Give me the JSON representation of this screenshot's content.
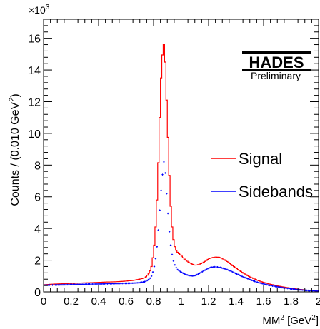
{
  "chart_data": {
    "type": "histogram",
    "xlabel": "MM",
    "xlabel_sup": "2",
    "xlabel_unit_open": " [GeV",
    "xlabel_unit_sup": "2",
    "xlabel_unit_close": "]",
    "ylabel": "Counts / (0.010 GeV",
    "ylabel_sup": "2",
    "ylabel_close": ")",
    "y_multiplier": "×10",
    "y_multiplier_sup": "3",
    "xlim": [
      0,
      2
    ],
    "ylim": [
      0,
      17.2
    ],
    "xticks": [
      0,
      0.2,
      0.4,
      0.6,
      0.8,
      1,
      1.2,
      1.4,
      1.6,
      1.8,
      2
    ],
    "xtick_labels": [
      "0",
      "0.2",
      "0.4",
      "0.6",
      "0.8",
      "1",
      "1.2",
      "1.4",
      "1.6",
      "1.8",
      "2"
    ],
    "yticks": [
      0,
      2,
      4,
      6,
      8,
      10,
      12,
      14,
      16
    ],
    "ytick_labels": [
      "0",
      "2",
      "4",
      "6",
      "8",
      "10",
      "12",
      "14",
      "16"
    ],
    "grid": false,
    "legend_position": "right",
    "watermark": {
      "logo": "HADES",
      "text": "Preliminary"
    },
    "colors": {
      "signal": "#ff0000",
      "sidebands": "#0000ff",
      "axis": "#000000"
    },
    "series": [
      {
        "name": "Signal",
        "style": "step",
        "bin_width": 0.01,
        "x": [
          0.0,
          0.05,
          0.1,
          0.15,
          0.2,
          0.25,
          0.3,
          0.35,
          0.4,
          0.45,
          0.5,
          0.55,
          0.6,
          0.65,
          0.7,
          0.74,
          0.76,
          0.78,
          0.79,
          0.8,
          0.81,
          0.82,
          0.83,
          0.84,
          0.85,
          0.86,
          0.87,
          0.875,
          0.88,
          0.885,
          0.89,
          0.9,
          0.91,
          0.92,
          0.93,
          0.94,
          0.95,
          0.96,
          0.97,
          0.98,
          1.0,
          1.02,
          1.05,
          1.08,
          1.1,
          1.12,
          1.15,
          1.18,
          1.2,
          1.22,
          1.25,
          1.28,
          1.3,
          1.33,
          1.36,
          1.4,
          1.45,
          1.5,
          1.55,
          1.6,
          1.65,
          1.7,
          1.75,
          1.8,
          1.85,
          1.9,
          1.95,
          2.0
        ],
        "y": [
          0.45,
          0.48,
          0.5,
          0.52,
          0.53,
          0.55,
          0.57,
          0.58,
          0.6,
          0.62,
          0.63,
          0.65,
          0.68,
          0.72,
          0.8,
          0.9,
          1.1,
          1.4,
          1.8,
          2.5,
          3.4,
          4.8,
          6.8,
          9.5,
          12.5,
          14.5,
          15.4,
          15.6,
          15.4,
          14.5,
          13.2,
          11.0,
          8.5,
          6.2,
          4.6,
          3.6,
          3.0,
          2.7,
          2.55,
          2.45,
          2.3,
          2.1,
          1.9,
          1.75,
          1.68,
          1.7,
          1.8,
          1.95,
          2.08,
          2.15,
          2.2,
          2.18,
          2.1,
          1.95,
          1.75,
          1.5,
          1.2,
          0.95,
          0.75,
          0.6,
          0.48,
          0.38,
          0.3,
          0.23,
          0.17,
          0.12,
          0.08,
          0.05
        ]
      },
      {
        "name": "Sidebands",
        "style": "markers",
        "x": [
          0.0,
          0.05,
          0.1,
          0.15,
          0.2,
          0.25,
          0.3,
          0.35,
          0.4,
          0.45,
          0.5,
          0.55,
          0.6,
          0.65,
          0.7,
          0.74,
          0.76,
          0.78,
          0.79,
          0.8,
          0.81,
          0.82,
          0.83,
          0.84,
          0.85,
          0.86,
          0.87,
          0.875,
          0.88,
          0.885,
          0.89,
          0.9,
          0.91,
          0.92,
          0.93,
          0.94,
          0.95,
          0.96,
          0.97,
          0.98,
          1.0,
          1.02,
          1.05,
          1.08,
          1.1,
          1.12,
          1.15,
          1.18,
          1.2,
          1.22,
          1.25,
          1.28,
          1.3,
          1.33,
          1.36,
          1.4,
          1.45,
          1.5,
          1.55,
          1.6,
          1.65,
          1.7,
          1.75,
          1.8,
          1.85,
          1.9,
          1.95,
          2.0
        ],
        "y": [
          0.42,
          0.43,
          0.44,
          0.45,
          0.46,
          0.47,
          0.48,
          0.49,
          0.5,
          0.51,
          0.52,
          0.53,
          0.54,
          0.55,
          0.58,
          0.65,
          0.75,
          0.9,
          1.1,
          1.4,
          1.8,
          2.4,
          3.3,
          4.5,
          5.8,
          7.0,
          7.8,
          8.2,
          8.0,
          7.5,
          6.8,
          5.6,
          4.3,
          3.3,
          2.6,
          2.1,
          1.8,
          1.6,
          1.45,
          1.35,
          1.25,
          1.15,
          1.05,
          1.0,
          1.02,
          1.1,
          1.25,
          1.4,
          1.5,
          1.55,
          1.58,
          1.55,
          1.5,
          1.42,
          1.32,
          1.15,
          0.95,
          0.78,
          0.62,
          0.5,
          0.4,
          0.32,
          0.25,
          0.19,
          0.14,
          0.1,
          0.07,
          0.05
        ]
      }
    ]
  }
}
